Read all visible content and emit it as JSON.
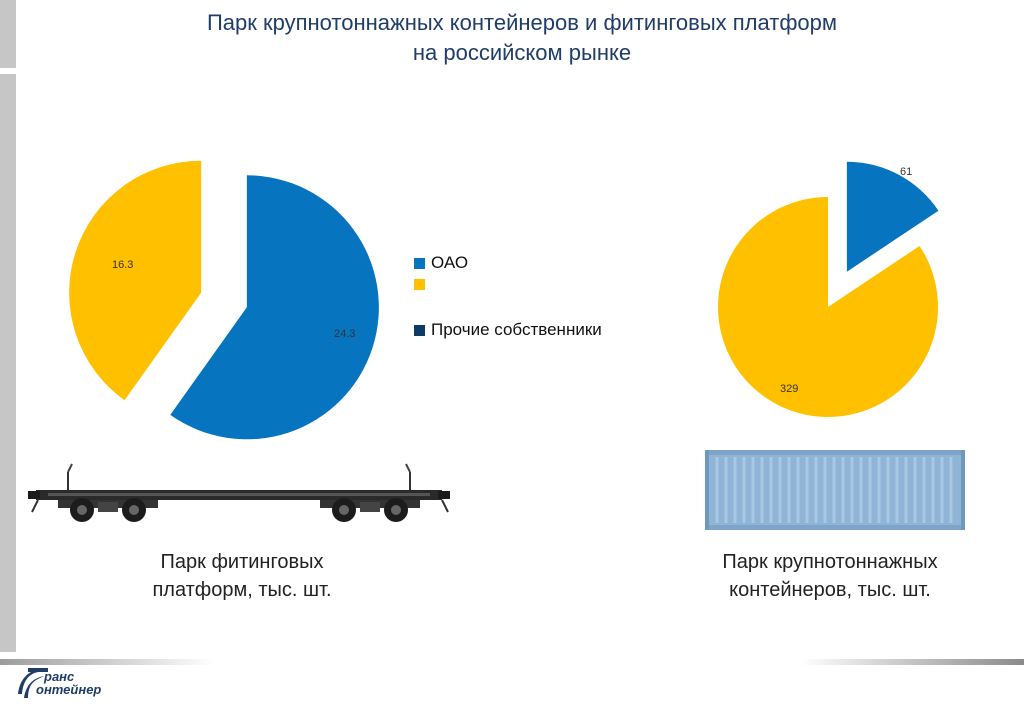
{
  "title_line1": "Парк крупнотоннажных контейнеров и фитинговых платформ",
  "title_line2": "на российском рынке",
  "legend": [
    {
      "label": "ОАО",
      "color": "#0674bf"
    },
    {
      "label": "",
      "color": "#ffc000"
    },
    {
      "label": "Прочие собственники",
      "color": "#0d3b66"
    }
  ],
  "caption_left_line1": "Парк фитинговых",
  "caption_left_line2": "платформ, тыс. шт.",
  "caption_right_line1": "Парк крупнотоннажных",
  "caption_right_line2": "контейнеров, тыс. шт.",
  "logo_line1": "ранс",
  "logo_line2": "онтейнер",
  "images": [
    "flat-railcar",
    "shipping-container"
  ],
  "chart_data": [
    {
      "type": "pie",
      "title": "Парк фитинговых платформ, тыс. шт.",
      "exploded": true,
      "slices": [
        {
          "label": "ОАО",
          "value": 24.3,
          "color": "#0674bf"
        },
        {
          "label": "",
          "value": 16.3,
          "color": "#ffc000"
        }
      ]
    },
    {
      "type": "pie",
      "title": "Парк крупнотоннажных контейнеров, тыс. шт.",
      "exploded": true,
      "slices": [
        {
          "label": "ОАО",
          "value": 61,
          "color": "#0674bf"
        },
        {
          "label": "",
          "value": 329,
          "color": "#ffc000"
        }
      ]
    }
  ]
}
